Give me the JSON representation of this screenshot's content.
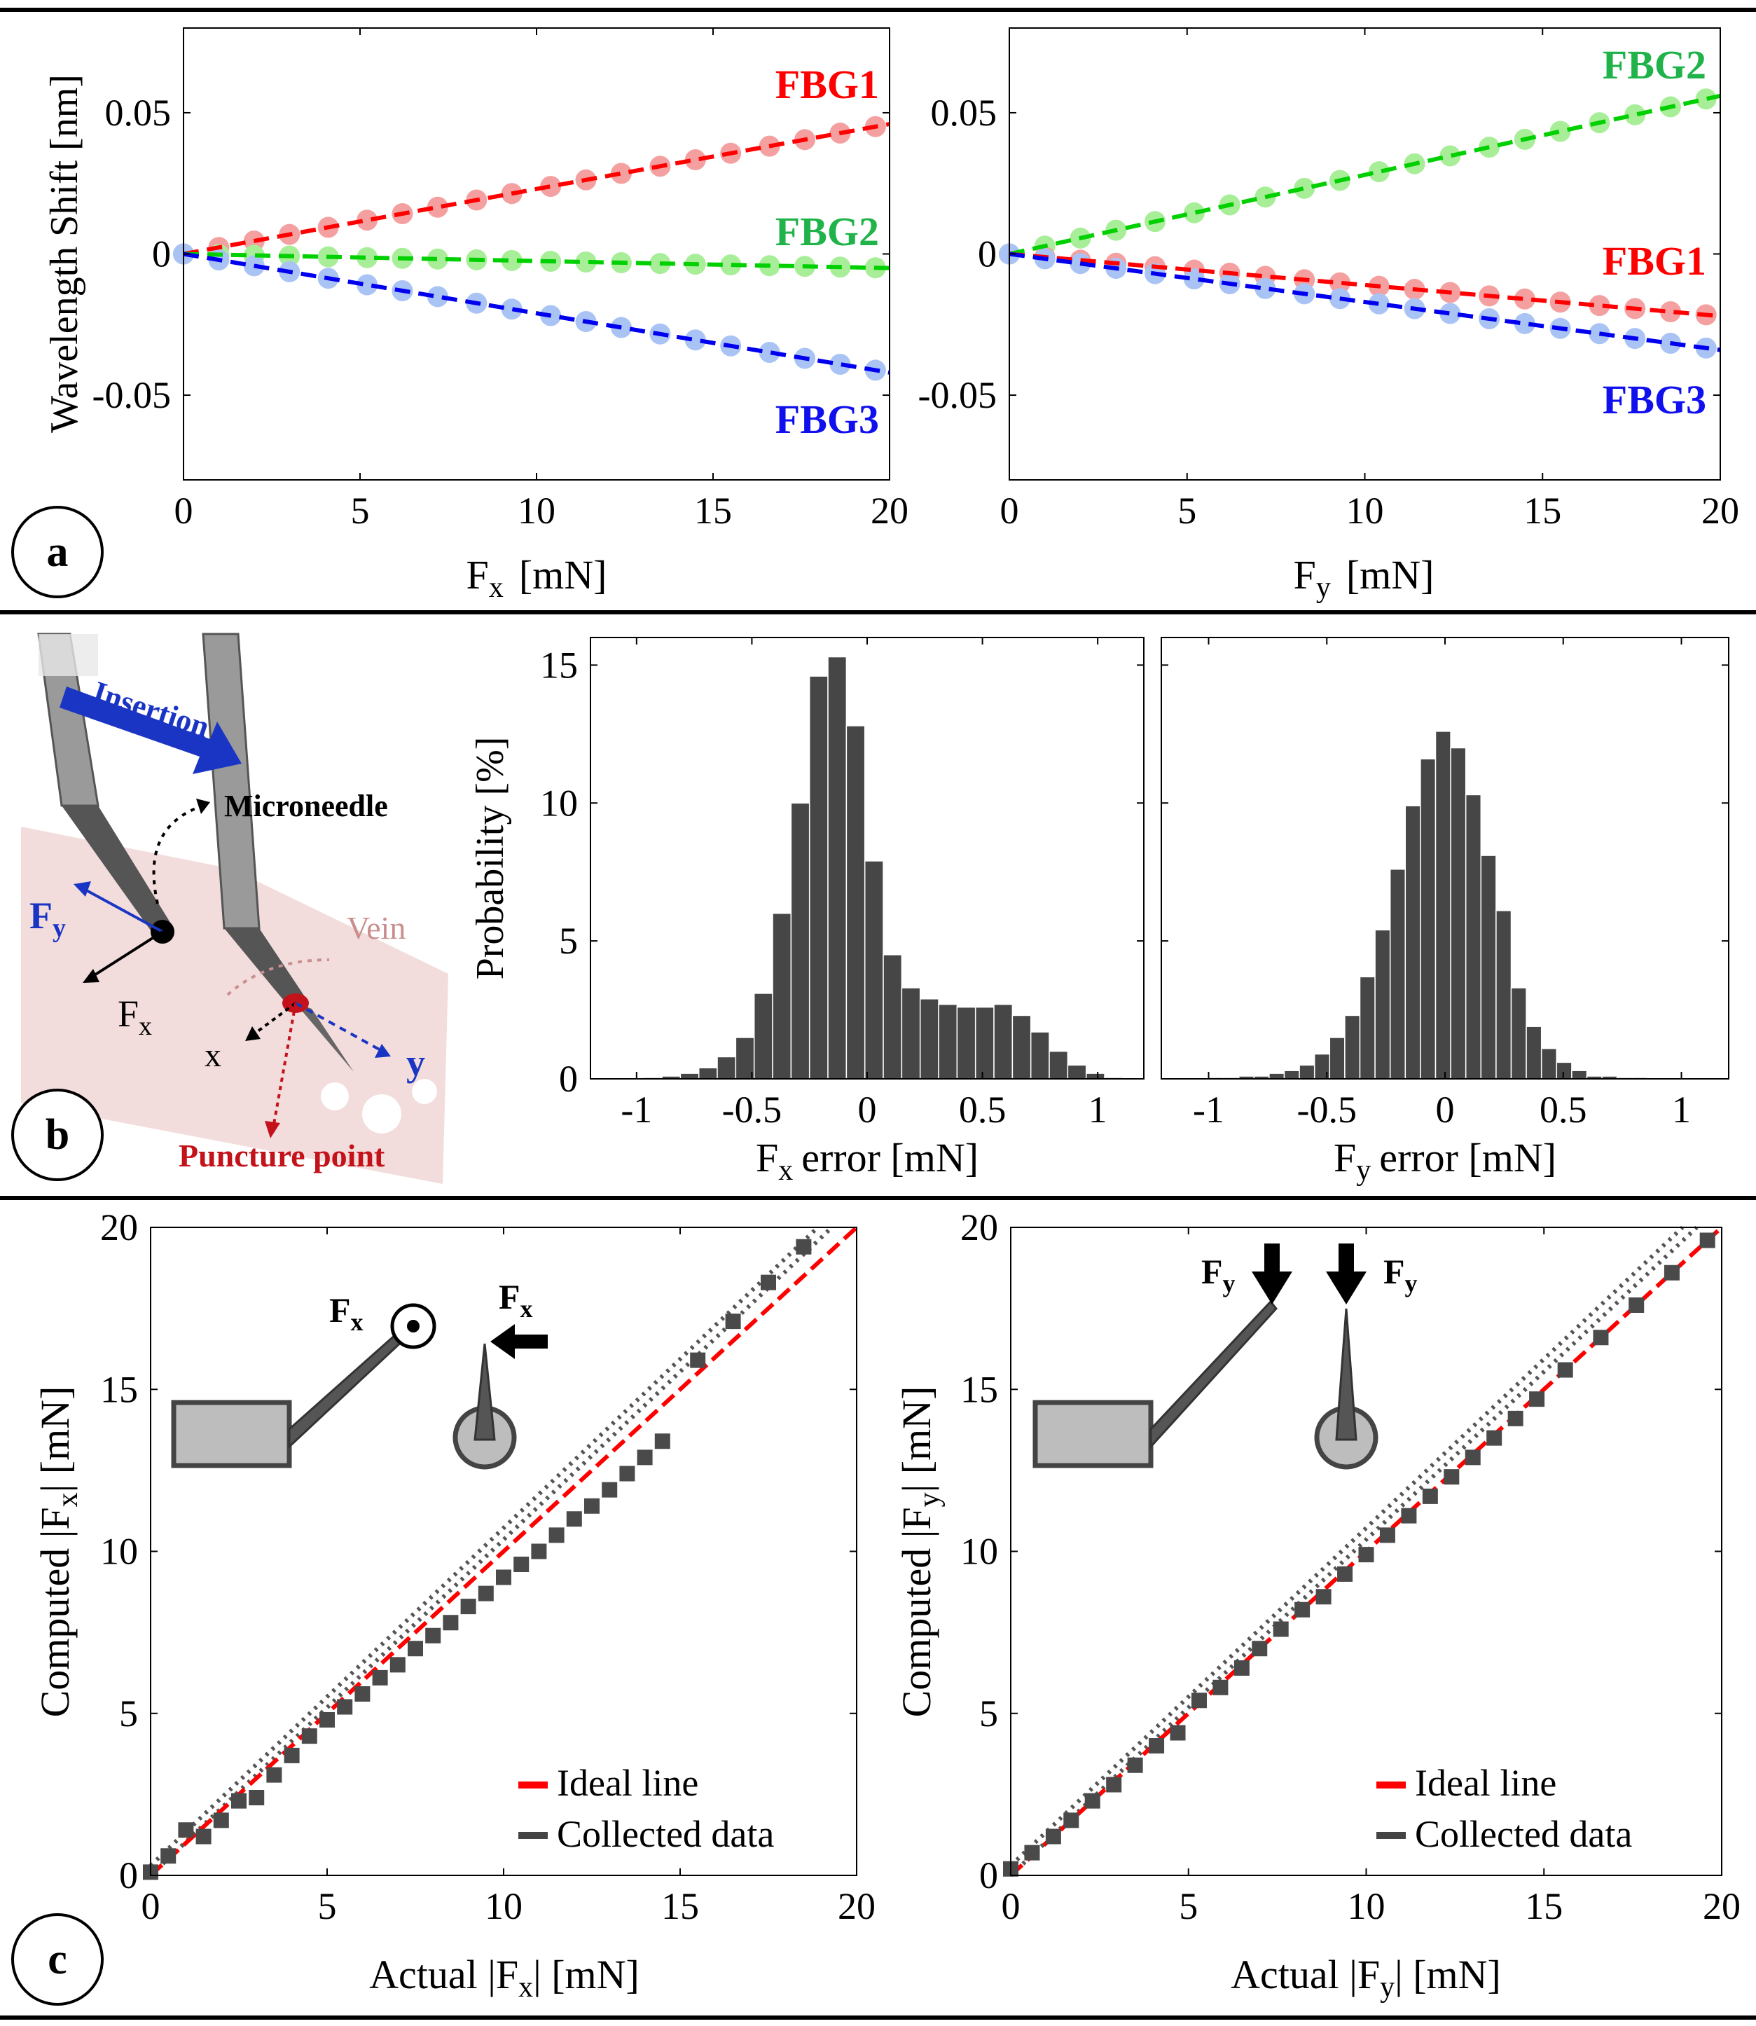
{
  "panel_letters": [
    "a",
    "b",
    "c"
  ],
  "chart_data": [
    {
      "id": "a1",
      "type": "scatter",
      "xlabel_main": "F",
      "xlabel_sub": "x",
      "xlabel_unit": "[mN]",
      "ylabel": "Wavelength Shift [nm]",
      "xlim": [
        0,
        20
      ],
      "ylim": [
        -0.08,
        0.08
      ],
      "xticks": [
        0,
        5,
        10,
        15,
        20
      ],
      "xtick_labels": [
        "0",
        "5",
        "10",
        "15",
        "20"
      ],
      "yticks": [
        -0.05,
        0,
        0.05
      ],
      "ytick_labels": [
        "-0.05",
        "0",
        "0.05"
      ],
      "series": [
        {
          "name": "FBG1",
          "color": "#ff0000",
          "marker_color": "#f4a0a0",
          "slope": 0.0023
        },
        {
          "name": "FBG2",
          "color": "#00d000",
          "marker_color": "#a8ee98",
          "slope": -0.00025
        },
        {
          "name": "FBG3",
          "color": "#0000ee",
          "marker_color": "#a9c3f5",
          "slope": -0.0021
        }
      ],
      "marker_x": [
        0,
        1,
        2,
        3,
        4.1,
        5.2,
        6.2,
        7.2,
        8.3,
        9.3,
        10.4,
        11.4,
        12.4,
        13.5,
        14.5,
        15.5,
        16.6,
        17.6,
        18.6,
        19.6
      ]
    },
    {
      "id": "a2",
      "type": "scatter",
      "xlabel_main": "F",
      "xlabel_sub": "y",
      "xlabel_unit": "[mN]",
      "xlim": [
        0,
        20
      ],
      "ylim": [
        -0.08,
        0.08
      ],
      "xticks": [
        0,
        5,
        10,
        15,
        20
      ],
      "xtick_labels": [
        "0",
        "5",
        "10",
        "15",
        "20"
      ],
      "yticks": [
        -0.05,
        0,
        0.05
      ],
      "ytick_labels": [
        "-0.05",
        "0",
        "0.05"
      ],
      "series": [
        {
          "name": "FBG2",
          "color": "#00d000",
          "marker_color": "#a8ee98",
          "slope": 0.0028
        },
        {
          "name": "FBG1",
          "color": "#ff0000",
          "marker_color": "#f4a0a0",
          "slope": -0.0011
        },
        {
          "name": "FBG3",
          "color": "#0000ee",
          "marker_color": "#a9c3f5",
          "slope": -0.0017
        }
      ],
      "marker_x": [
        0,
        1,
        2,
        3,
        4.1,
        5.2,
        6.2,
        7.2,
        8.3,
        9.3,
        10.4,
        11.4,
        12.4,
        13.5,
        14.5,
        15.5,
        16.6,
        17.6,
        18.6,
        19.6
      ]
    },
    {
      "id": "b1",
      "type": "bar",
      "ylabel": "Probability [%]",
      "xlabel_main": "F",
      "xlabel_sub": "x",
      "xlabel_unit": "error [mN]",
      "xlim": [
        -1.2,
        1.2
      ],
      "ylim": [
        0,
        16
      ],
      "xticks": [
        -1,
        -0.5,
        0,
        0.5,
        1
      ],
      "xtick_labels": [
        "-1",
        "-0.5",
        "0",
        "0.5",
        "1"
      ],
      "yticks": [
        0,
        5,
        10,
        15
      ],
      "ytick_labels": [
        "0",
        "5",
        "10",
        "15"
      ],
      "bin_start": -1.05,
      "bin_width": 0.08,
      "values": [
        0.02,
        0.05,
        0.1,
        0.2,
        0.4,
        0.8,
        1.5,
        3.1,
        6.0,
        10.0,
        14.6,
        15.3,
        12.8,
        7.9,
        4.5,
        3.3,
        2.9,
        2.7,
        2.6,
        2.6,
        2.7,
        2.3,
        1.7,
        1.0,
        0.5,
        0.2,
        0.05,
        0.0
      ]
    },
    {
      "id": "b2",
      "type": "bar",
      "xlabel_main": "F",
      "xlabel_sub": "y",
      "xlabel_unit": "error [mN]",
      "xlim": [
        -1.2,
        1.2
      ],
      "ylim": [
        0,
        16
      ],
      "xticks": [
        -1,
        -0.5,
        0,
        0.5,
        1
      ],
      "xtick_labels": [
        "-1",
        "-0.5",
        "0",
        "0.5",
        "1"
      ],
      "yticks": [
        0,
        5,
        10,
        15
      ],
      "ytick_labels": [
        "0",
        "5",
        "10",
        "15"
      ],
      "bin_start": -1.0,
      "bin_width": 0.064,
      "values": [
        0.05,
        0.05,
        0.1,
        0.1,
        0.2,
        0.3,
        0.5,
        0.9,
        1.5,
        2.3,
        3.7,
        5.4,
        7.6,
        9.9,
        11.6,
        12.6,
        12.0,
        10.3,
        8.1,
        6.1,
        3.3,
        1.9,
        1.1,
        0.6,
        0.3,
        0.1,
        0.1,
        0.05,
        0.05
      ]
    },
    {
      "id": "c1",
      "type": "scatter",
      "ylabel_main": "Computed |F",
      "ylabel_sub": "x",
      "ylabel_unit": "| [mN]",
      "xlabel_main": "Actual |F",
      "xlabel_sub": "x",
      "xlabel_unit": "| [mN]",
      "xlim": [
        0,
        20
      ],
      "ylim": [
        0,
        20
      ],
      "xticks": [
        0,
        5,
        10,
        15,
        20
      ],
      "xtick_labels": [
        "0",
        "5",
        "10",
        "15",
        "20"
      ],
      "yticks": [
        0,
        5,
        10,
        15,
        20
      ],
      "ytick_labels": [
        "0",
        "5",
        "10",
        "15",
        "20"
      ],
      "legend": [
        "Ideal line",
        "Collected data"
      ],
      "legend_position": "bottom-right",
      "ideal": [
        [
          0,
          0
        ],
        [
          20,
          20
        ]
      ],
      "data_x": [
        0,
        0.5,
        1,
        1.5,
        2,
        2.5,
        3,
        3.5,
        4,
        4.5,
        5,
        5.5,
        6,
        6.5,
        7,
        7.5,
        8,
        8.5,
        9,
        9.5,
        10,
        10.5,
        11,
        11.5,
        12,
        12.5,
        13,
        13.5,
        14,
        14.5,
        15.5,
        16.5,
        17.5,
        18.5
      ],
      "data_y": [
        0.1,
        0.6,
        1.4,
        1.2,
        1.7,
        2.3,
        2.4,
        3.1,
        3.7,
        4.3,
        4.8,
        5.2,
        5.6,
        6.1,
        6.5,
        7.0,
        7.4,
        7.8,
        8.3,
        8.7,
        9.2,
        9.6,
        10.0,
        10.5,
        11.0,
        11.4,
        11.9,
        12.4,
        12.9,
        13.4,
        15.9,
        17.1,
        18.3,
        19.4
      ],
      "insets": {
        "label_a": "F",
        "sub_a": "x",
        "label_b": "F",
        "sub_b": "x"
      }
    },
    {
      "id": "c2",
      "type": "scatter",
      "ylabel_main": "Computed |F",
      "ylabel_sub": "y",
      "ylabel_unit": "| [mN]",
      "xlabel_main": "Actual |F",
      "xlabel_sub": "y",
      "xlabel_unit": "| [mN]",
      "xlim": [
        0,
        20
      ],
      "ylim": [
        0,
        20
      ],
      "xticks": [
        0,
        5,
        10,
        15,
        20
      ],
      "xtick_labels": [
        "0",
        "5",
        "10",
        "15",
        "20"
      ],
      "yticks": [
        0,
        5,
        10,
        15,
        20
      ],
      "ytick_labels": [
        "0",
        "5",
        "10",
        "15",
        "20"
      ],
      "legend": [
        "Ideal line",
        "Collected data"
      ],
      "legend_position": "bottom-right",
      "ideal": [
        [
          0,
          0
        ],
        [
          20,
          20
        ]
      ],
      "data_x": [
        0,
        0.6,
        1.2,
        1.7,
        2.3,
        2.9,
        3.5,
        4.1,
        4.7,
        5.3,
        5.9,
        6.5,
        7.0,
        7.6,
        8.2,
        8.8,
        9.4,
        10.0,
        10.6,
        11.2,
        11.8,
        12.4,
        13.0,
        13.6,
        14.2,
        14.8,
        15.6,
        16.6,
        17.6,
        18.6,
        19.6
      ],
      "data_y": [
        0.2,
        0.7,
        1.2,
        1.7,
        2.3,
        2.8,
        3.4,
        4.0,
        4.4,
        5.4,
        5.8,
        6.4,
        7.0,
        7.6,
        8.2,
        8.6,
        9.3,
        9.9,
        10.5,
        11.1,
        11.7,
        12.3,
        12.9,
        13.5,
        14.1,
        14.7,
        15.6,
        16.6,
        17.6,
        18.6,
        19.6
      ],
      "insets": {
        "label_a": "F",
        "sub_a": "y",
        "label_b": "F",
        "sub_b": "y"
      }
    }
  ],
  "schematic": {
    "insertion": "Insertion",
    "microneedle": "Microneedle",
    "vein": "Vein",
    "fy_main": "F",
    "fy_sub": "y",
    "fx_main": "F",
    "fx_sub": "x",
    "x_label": "x",
    "y_label": "y",
    "puncture": "Puncture point",
    "colors": {
      "insertion": "#1430c8",
      "vein": "#c98f8f",
      "puncture": "#c4121a",
      "tissue": "#f3dcdc"
    }
  }
}
